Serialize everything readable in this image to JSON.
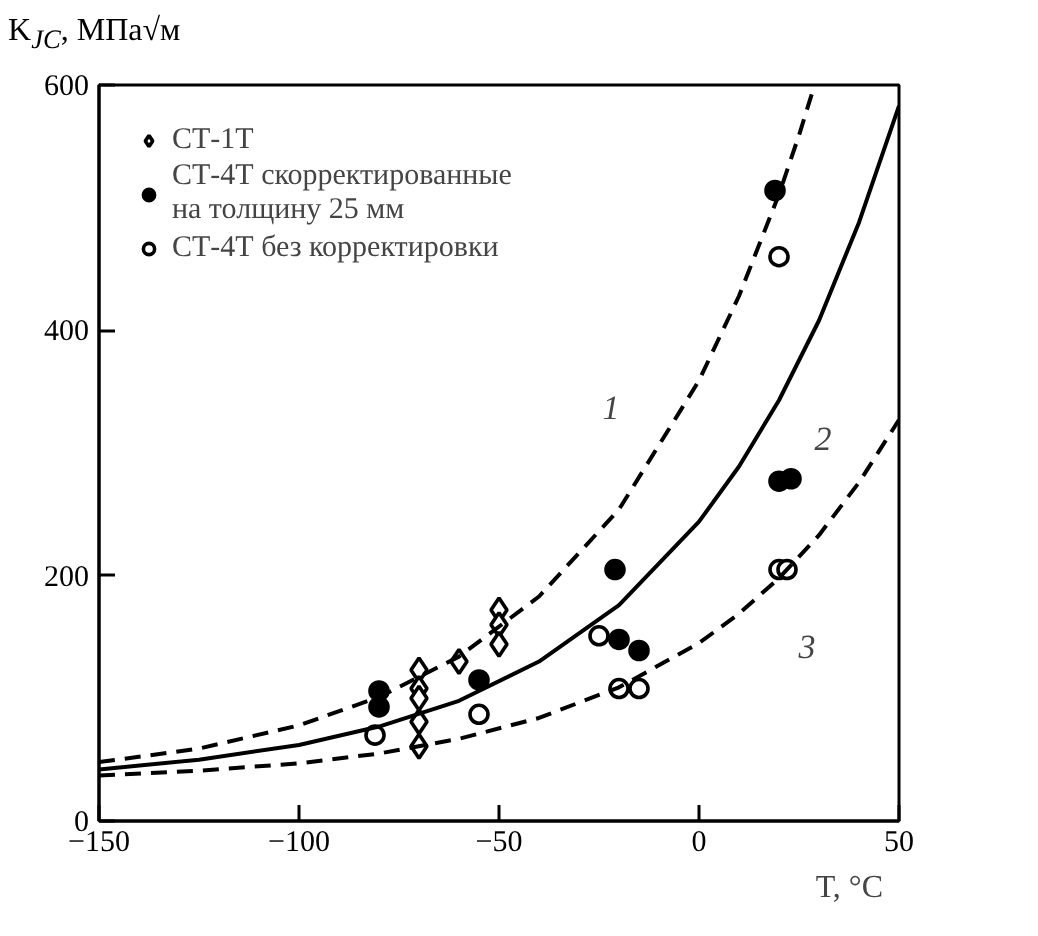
{
  "chart_data": {
    "type": "scatter",
    "xlabel": "T, °C",
    "ylabel": "K$_{JC}$, МПа√м",
    "xlim": [
      -150,
      50
    ],
    "xticks": [
      -150,
      -100,
      -50,
      0,
      50
    ],
    "ylim": [
      0,
      600
    ],
    "yticks": [
      0,
      200,
      400,
      600
    ],
    "grid": false,
    "legend": "top left",
    "annotations": [
      "1",
      "2",
      "3"
    ],
    "series": [
      {
        "name": "СТ-1Т",
        "marker": "diamond",
        "color": "#ffffff",
        "x": [
          -50,
          -50,
          -50,
          -60,
          -70,
          -70,
          -70,
          -70,
          -70
        ],
        "values": [
          172,
          160,
          144,
          130,
          123,
          108,
          100,
          81,
          61
        ]
      },
      {
        "name": "СТ-4Т скорректированные\nна толщину 25 мм",
        "marker": "circle",
        "color": "#000000",
        "x": [
          -80,
          -80,
          -55,
          -21,
          -20,
          -15,
          19,
          20,
          23
        ],
        "values": [
          106,
          93,
          115,
          205,
          148,
          139,
          514,
          277,
          279
        ]
      },
      {
        "name": "СТ-4Т без корректировки",
        "marker": "circle",
        "color": "#ffffff",
        "x": [
          -81,
          -55,
          -25,
          -20,
          -15,
          20,
          22,
          20
        ],
        "values": [
          70,
          87,
          151,
          108,
          108,
          205,
          205,
          460
        ]
      },
      {
        "type": "line",
        "line_style": "dashed",
        "marker": "none",
        "color": "#000000",
        "x": [
          -150,
          -125,
          -100,
          -80,
          -60,
          -40,
          -20,
          0,
          10,
          20,
          25,
          28.9
        ],
        "values": [
          48,
          59,
          78,
          101,
          134,
          183,
          254,
          359,
          428,
          511,
          559,
          600
        ]
      },
      {
        "type": "line",
        "line_style": "solid",
        "marker": "none",
        "color": "#000000",
        "x": [
          -150,
          -125,
          -100,
          -80,
          -60,
          -40,
          -20,
          0,
          10,
          20,
          30,
          40,
          50
        ],
        "values": [
          42,
          50,
          62,
          77,
          98,
          130,
          176,
          244,
          289,
          343,
          408,
          488,
          583
        ]
      },
      {
        "type": "line",
        "line_style": "dashed",
        "marker": "none",
        "color": "#000000",
        "x": [
          -150,
          -125,
          -100,
          -80,
          -60,
          -40,
          -20,
          0,
          10,
          20,
          30,
          40,
          50
        ],
        "values": [
          37,
          41,
          47,
          55,
          67,
          84,
          109,
          145,
          169,
          198,
          233,
          276,
          327
        ]
      }
    ]
  }
}
